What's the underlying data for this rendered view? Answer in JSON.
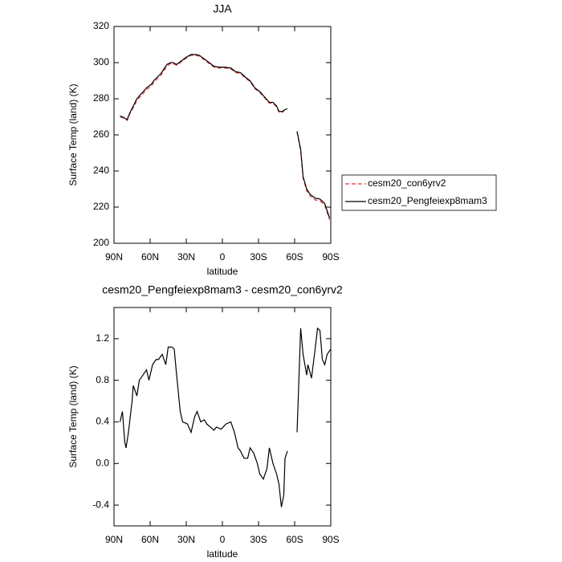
{
  "chart_data": [
    {
      "type": "line",
      "title": "JJA",
      "xlabel": "latitude",
      "ylabel": "Surface Temp (land) (K)",
      "x": [
        85,
        83,
        79,
        77,
        74,
        71,
        67,
        63,
        59,
        57,
        54,
        51,
        49,
        46,
        43,
        41,
        38,
        34,
        30,
        26,
        22,
        19,
        15,
        11,
        7,
        3,
        -2,
        -7,
        -11,
        -15,
        -19,
        -23,
        -27,
        -31,
        -35,
        -39,
        -42,
        -45,
        -47,
        -50,
        -52,
        -54,
        -58,
        -62,
        -65,
        -67,
        -70,
        -73,
        -77,
        -81,
        -85,
        -89
      ],
      "series": [
        {
          "name": "cesm20_con6yrv2",
          "color": "#e03a3a",
          "dashed": true,
          "values": [
            270,
            269.5,
            268,
            271.5,
            275,
            279,
            282,
            285,
            287,
            289,
            291,
            293,
            295,
            298,
            299.5,
            299.5,
            298.5,
            300.5,
            302.5,
            304,
            304,
            303.5,
            301.5,
            299.5,
            297.5,
            297,
            297,
            296.5,
            294.5,
            294,
            291.5,
            289.5,
            285.5,
            283.5,
            280.5,
            277.5,
            277.5,
            275.5,
            272.5,
            272.5,
            274,
            274.5,
            null,
            261.5,
            251,
            236,
            229,
            226,
            224,
            223.5,
            221,
            213
          ]
        },
        {
          "name": "cesm20_Pengfeiexp8mam3",
          "color": "#000000",
          "dashed": false,
          "values": [
            270.5,
            270,
            268.5,
            272,
            276,
            280,
            283,
            286,
            288,
            290,
            292,
            294,
            296,
            299,
            300,
            300,
            299,
            301,
            303,
            304.5,
            304.5,
            304,
            302,
            300,
            298,
            297.5,
            297.5,
            297,
            295,
            294.5,
            292,
            290,
            286,
            284,
            281,
            278,
            278,
            276,
            273,
            273,
            274,
            274.5,
            null,
            262,
            252,
            237,
            230,
            227,
            225,
            224.5,
            222,
            214
          ]
        }
      ],
      "xlim": [
        90,
        -90
      ],
      "xticks": [
        {
          "value": 90,
          "label": "90N"
        },
        {
          "value": 60,
          "label": "60N"
        },
        {
          "value": 30,
          "label": "30N"
        },
        0,
        {
          "value": -30,
          "label": "30S"
        },
        {
          "value": -60,
          "label": "60S"
        },
        {
          "value": -90,
          "label": "90S"
        }
      ],
      "ylim": [
        200,
        320
      ],
      "yticks": [
        200,
        220,
        240,
        260,
        280,
        300,
        320
      ],
      "legend": "right"
    },
    {
      "type": "line",
      "title": "cesm20_Pengfeiexp8mam3 - cesm20_con6yrv2",
      "xlabel": "latitude",
      "ylabel": "Surface Temp (land) (K)",
      "x": [
        85,
        83,
        81,
        80,
        78,
        75,
        74,
        71,
        69,
        66,
        63,
        61,
        58,
        55,
        53,
        50,
        47,
        45,
        42,
        40,
        38,
        35,
        33,
        29,
        26,
        23,
        21,
        18,
        15,
        13,
        10,
        7,
        5,
        1,
        -3,
        -7,
        -10,
        -13,
        -15,
        -18,
        -21,
        -23,
        -26,
        -29,
        -31,
        -34,
        -37,
        -39,
        -42,
        -45,
        -47,
        -49,
        -51,
        -52,
        -54,
        -58,
        -62,
        -65,
        -67,
        -70,
        -71,
        -74,
        -77,
        -79,
        -81,
        -83,
        -85,
        -87,
        -90
      ],
      "series": [
        {
          "color": "#000000",
          "dashed": false,
          "values": [
            0.4,
            0.5,
            0.2,
            0.15,
            0.3,
            0.6,
            0.75,
            0.65,
            0.8,
            0.85,
            0.9,
            0.8,
            0.95,
            1.0,
            1.0,
            1.05,
            0.95,
            1.12,
            1.12,
            1.1,
            0.85,
            0.5,
            0.4,
            0.38,
            0.3,
            0.45,
            0.5,
            0.4,
            0.42,
            0.38,
            0.35,
            0.32,
            0.35,
            0.33,
            0.38,
            0.4,
            0.3,
            0.15,
            0.12,
            0.05,
            0.05,
            0.15,
            0.1,
            0.0,
            -0.1,
            -0.15,
            -0.05,
            0.15,
            0.0,
            -0.1,
            -0.2,
            -0.42,
            -0.3,
            0.05,
            0.12,
            null,
            0.3,
            1.3,
            1.05,
            0.85,
            0.95,
            0.82,
            1.1,
            1.3,
            1.28,
            1.0,
            0.95,
            1.05,
            1.1
          ]
        }
      ],
      "xlim": [
        90,
        -90
      ],
      "xticks": [
        {
          "value": 90,
          "label": "90N"
        },
        {
          "value": 60,
          "label": "60N"
        },
        {
          "value": 30,
          "label": "30N"
        },
        0,
        {
          "value": -30,
          "label": "30S"
        },
        {
          "value": -60,
          "label": "60S"
        },
        {
          "value": -90,
          "label": "90S"
        }
      ],
      "ylim": [
        -0.6,
        1.5
      ],
      "yticks": [
        -0.4,
        {
          "value": 0,
          "label": "0.0"
        },
        0.4,
        0.8,
        1.2
      ]
    }
  ]
}
